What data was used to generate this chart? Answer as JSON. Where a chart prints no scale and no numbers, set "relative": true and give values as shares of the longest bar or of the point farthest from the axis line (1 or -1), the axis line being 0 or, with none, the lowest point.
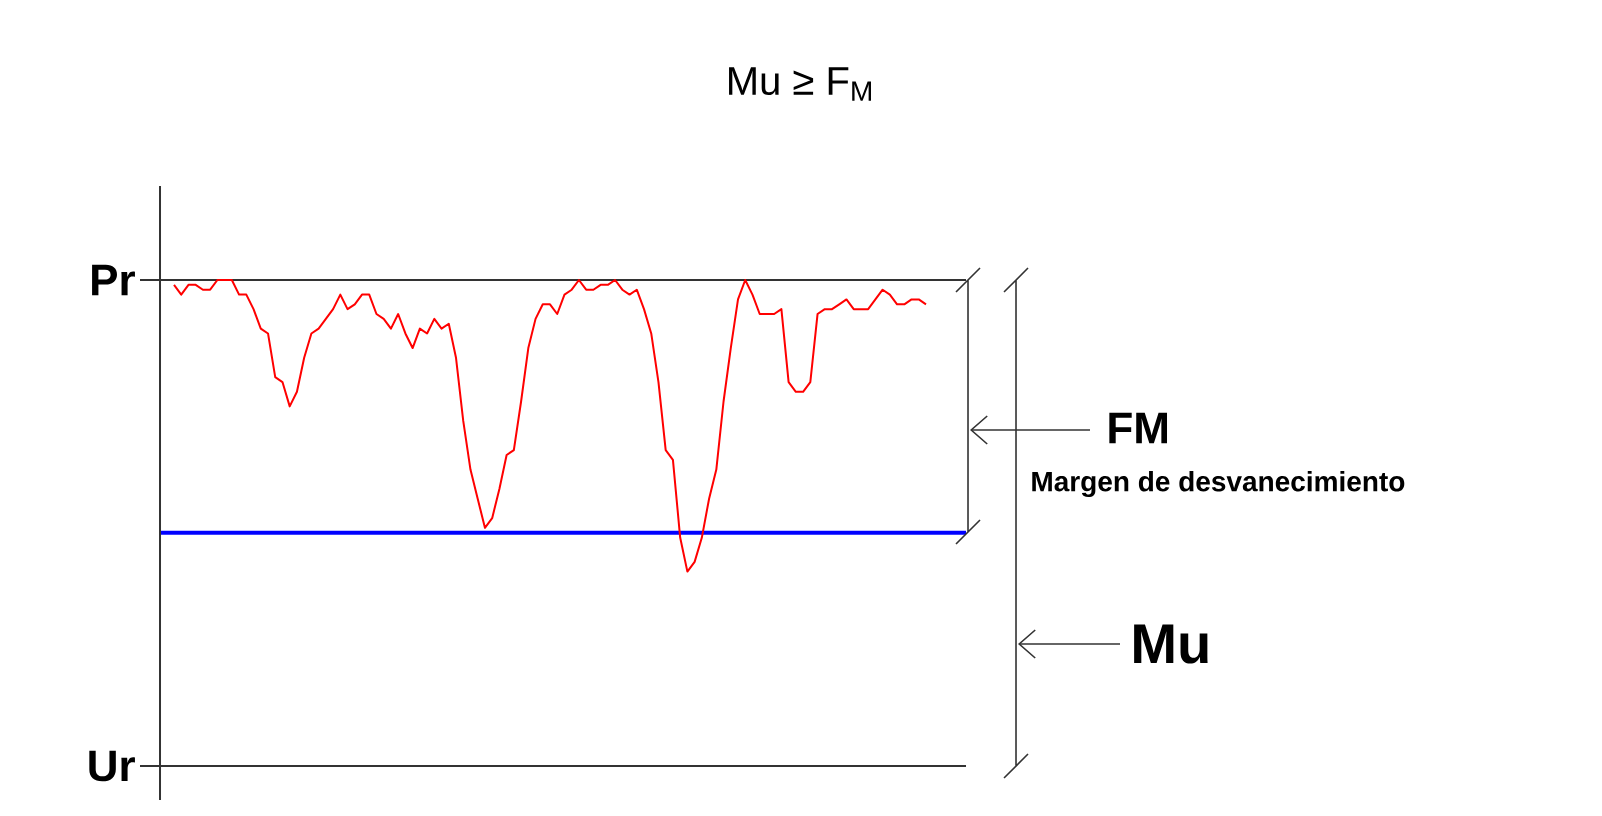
{
  "chart_data": {
    "type": "line",
    "title": "Mu ≥ F$_{M}$",
    "relative": true,
    "categories": [
      null,
      null,
      null,
      null,
      null,
      null,
      null,
      null,
      null,
      null,
      null,
      null,
      null,
      null,
      null,
      null,
      null,
      null,
      null,
      null,
      null,
      null,
      null,
      null,
      null,
      null,
      null,
      null,
      null,
      null,
      null,
      null,
      null,
      null,
      null,
      null,
      null,
      null,
      null,
      null,
      null,
      null,
      null,
      null,
      null,
      null,
      null,
      null,
      null,
      null,
      null,
      null,
      null,
      null,
      null,
      null,
      null,
      null,
      null,
      null,
      null,
      null,
      null,
      null,
      null,
      null,
      null,
      null,
      null,
      null,
      null,
      null,
      null,
      null,
      null,
      null,
      null,
      null,
      null,
      null,
      null,
      null,
      null,
      null,
      null,
      null,
      null,
      null,
      null,
      null,
      null,
      null,
      null,
      null,
      null,
      null,
      null,
      null,
      null,
      null,
      null,
      null,
      null,
      null,
      null
    ],
    "series": [
      {
        "color": "#ff0000",
        "values": [
          0.99,
          0.97,
          0.99,
          0.99,
          0.98,
          0.98,
          1.0,
          1.0,
          1.0,
          0.97,
          0.97,
          0.94,
          0.9,
          0.89,
          0.8,
          0.79,
          0.74,
          0.77,
          0.84,
          0.89,
          0.9,
          0.92,
          0.94,
          0.97,
          0.94,
          0.95,
          0.97,
          0.97,
          0.93,
          0.92,
          0.9,
          0.93,
          0.89,
          0.86,
          0.9,
          0.89,
          0.92,
          0.9,
          0.91,
          0.84,
          0.71,
          0.61,
          0.55,
          0.49,
          0.51,
          0.57,
          0.64,
          0.65,
          0.75,
          0.86,
          0.92,
          0.95,
          0.95,
          0.93,
          0.97,
          0.98,
          1.0,
          0.98,
          0.98,
          0.99,
          0.99,
          1.0,
          0.98,
          0.97,
          0.98,
          0.94,
          0.89,
          0.79,
          0.65,
          0.63,
          0.47,
          0.4,
          0.42,
          0.47,
          0.55,
          0.61,
          0.75,
          0.86,
          0.96,
          1.0,
          0.97,
          0.93,
          0.93,
          0.93,
          0.94,
          0.79,
          0.77,
          0.77,
          0.79,
          0.93,
          0.94,
          0.94,
          0.95,
          0.96,
          0.94,
          0.94,
          0.94,
          0.96,
          0.98,
          0.97,
          0.95,
          0.95,
          0.96,
          0.96,
          0.95
        ]
      }
    ],
    "ref_lines": [
      {
        "axis": "y",
        "value": 1,
        "label": "Pr",
        "color": "#333333"
      },
      {
        "axis": "y",
        "value": 0.48,
        "color": "#0000ff"
      },
      {
        "axis": "y",
        "value": 0,
        "label": "Ur",
        "color": "#333333"
      }
    ],
    "annotations": [
      "FM",
      "Margen de desvanecimiento",
      "Mu"
    ]
  }
}
